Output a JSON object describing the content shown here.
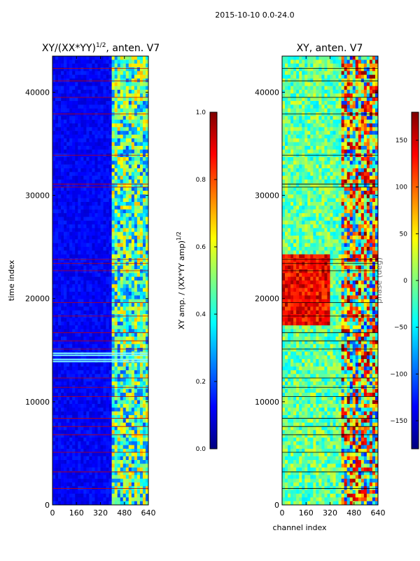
{
  "figure": {
    "suptitle": "2015-10-10 0.0-24.0"
  },
  "colors": {
    "jet": [
      "#00007f",
      "#0000ff",
      "#007fff",
      "#00ffff",
      "#7fff7f",
      "#ffff00",
      "#ff7f00",
      "#ff0000",
      "#7f0000"
    ],
    "flag_line_left": "#c40000",
    "flag_line_right": "#000000"
  },
  "chart_data": [
    {
      "type": "heatmap",
      "title_base": "XY/(XX*YY)",
      "title_exp": "1/2",
      "title_suffix": ", anten. V7",
      "xlabel": "",
      "ylabel": "time index",
      "xlim": [
        0,
        640
      ],
      "ylim": [
        0,
        43500
      ],
      "xticks": [
        0,
        160,
        320,
        480,
        640
      ],
      "xtick_labels": [
        "0",
        "160",
        "320",
        "480",
        "640"
      ],
      "yticks": [
        0,
        10000,
        20000,
        30000,
        40000
      ],
      "ytick_labels": [
        "0",
        "10000",
        "20000",
        "30000",
        "40000"
      ],
      "colorbar": {
        "label_base": "XY amp. / (XX*YY amp)",
        "label_exp": "1/2",
        "range": [
          0.0,
          1.0
        ],
        "ticks": [
          0.0,
          0.2,
          0.4,
          0.6,
          0.8,
          1.0
        ],
        "tick_labels": [
          "0.0",
          "0.2",
          "0.4",
          "0.6",
          "0.8",
          "1.0"
        ]
      },
      "flagged_rows": [
        1600,
        3200,
        5100,
        6800,
        7600,
        8400,
        10500,
        11400,
        12300,
        15100,
        15900,
        16700,
        18300,
        19600,
        22700,
        23400,
        23800,
        30800,
        31100,
        33900,
        37900,
        39500,
        41100,
        42300
      ],
      "band_rows": [
        13900,
        14100,
        14500,
        14700
      ],
      "rfi_channel_range": [
        400,
        640
      ]
    },
    {
      "type": "heatmap",
      "title_base": "XY, anten. V7",
      "xlabel": "channel index",
      "ylabel": "",
      "xlim": [
        0,
        640
      ],
      "ylim": [
        0,
        43500
      ],
      "xticks": [
        0,
        160,
        320,
        480,
        640
      ],
      "xtick_labels": [
        "0",
        "160",
        "320",
        "480",
        "640"
      ],
      "yticks": [
        0,
        10000,
        20000,
        30000,
        40000
      ],
      "ytick_labels": [
        "0",
        "10000",
        "20000",
        "30000",
        "40000"
      ],
      "colorbar": {
        "label": "phase (deg)",
        "range": [
          -180,
          180
        ],
        "ticks": [
          -150,
          -100,
          -50,
          0,
          50,
          100,
          150
        ],
        "tick_labels": [
          "−150",
          "−100",
          "−50",
          "0",
          "50",
          "100",
          "150"
        ]
      },
      "flagged_rows": [
        1600,
        3200,
        5100,
        6800,
        7600,
        8400,
        10500,
        11400,
        12300,
        15100,
        15900,
        16700,
        18300,
        19600,
        22700,
        23400,
        23800,
        30800,
        31100,
        33900,
        37900,
        39500,
        41100,
        42300
      ],
      "red_block_rows": [
        17500,
        24200
      ],
      "red_block_channels": [
        0,
        320
      ],
      "rfi_channel_range": [
        400,
        640
      ]
    }
  ]
}
